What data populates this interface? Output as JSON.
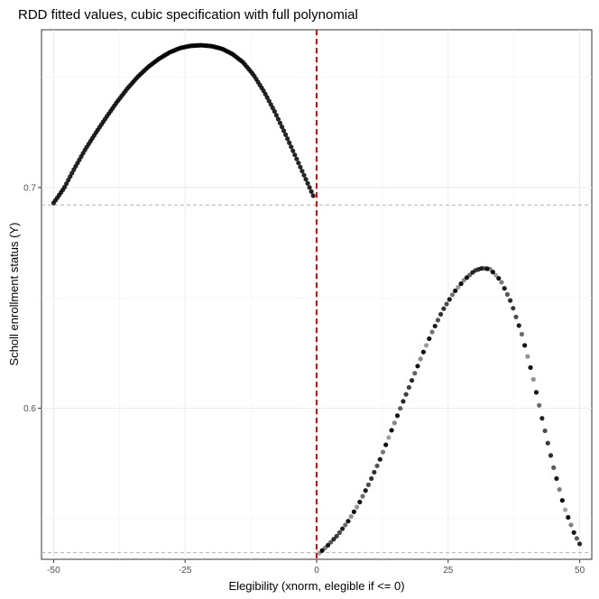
{
  "chart_data": {
    "type": "scatter",
    "title": "RDD fitted values, cubic specification with full polynomial",
    "xlabel": "Elegibility (xnorm, elegible if <= 0)",
    "ylabel": "Scholl enrollment status (Y)",
    "xlim": [
      -52.3,
      52.3
    ],
    "ylim": [
      0.5315,
      0.7715
    ],
    "x_ticks": [
      -50,
      -25,
      0,
      25,
      50
    ],
    "x_tick_labels": [
      "-50",
      "-25",
      "0",
      "25",
      "50"
    ],
    "y_ticks": [
      0.6,
      0.7
    ],
    "y_tick_labels": [
      "0.6",
      "0.7"
    ],
    "grid": true,
    "cutoff": 0,
    "cutoff_color": "#ff0000",
    "hlines": [
      0.6921,
      0.5345
    ],
    "hline_color": "#b3b3b3",
    "point_color": "#000000",
    "left_segment": {
      "x": [
        -50,
        -48,
        -46,
        -44,
        -42,
        -40,
        -38,
        -36,
        -34,
        -32,
        -30,
        -28,
        -26,
        -24,
        -22,
        -20,
        -18,
        -16,
        -14,
        -12,
        -10,
        -8,
        -6,
        -4,
        -2,
        -0.5
      ],
      "y": [
        0.693,
        0.6998,
        0.7088,
        0.7172,
        0.7247,
        0.7318,
        0.7386,
        0.7448,
        0.7502,
        0.7547,
        0.7583,
        0.7612,
        0.7632,
        0.7642,
        0.7645,
        0.7641,
        0.7629,
        0.7605,
        0.7568,
        0.7511,
        0.7435,
        0.7345,
        0.7245,
        0.714,
        0.7035,
        0.6955
      ]
    },
    "right_segment": {
      "x": [
        0.5,
        2,
        4,
        6,
        8,
        10,
        12,
        14,
        16,
        18,
        20,
        22,
        24,
        26,
        28,
        30,
        31.5,
        33,
        35,
        37,
        39,
        41,
        43,
        45,
        47,
        49,
        50
      ],
      "y": [
        0.5343,
        0.5375,
        0.5425,
        0.5488,
        0.5565,
        0.566,
        0.5765,
        0.5885,
        0.6005,
        0.612,
        0.6238,
        0.6348,
        0.6445,
        0.6522,
        0.658,
        0.6623,
        0.6635,
        0.663,
        0.6578,
        0.6478,
        0.6335,
        0.6152,
        0.5938,
        0.5735,
        0.5555,
        0.543,
        0.5385
      ]
    }
  }
}
